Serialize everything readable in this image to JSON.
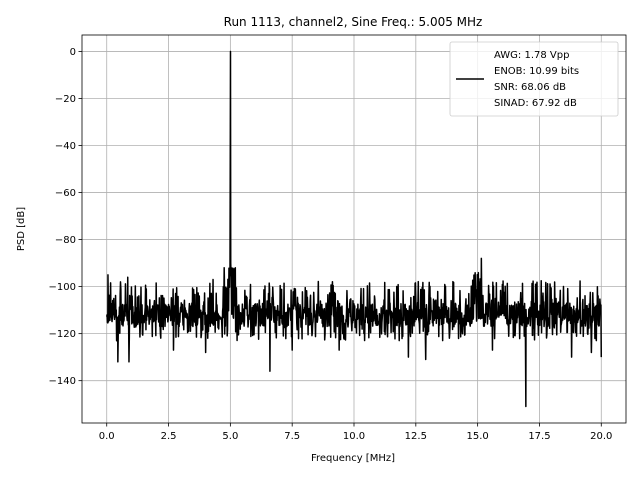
{
  "chart_data": {
    "type": "line",
    "title": "Run 1113, channel2, Sine Freq.: 5.005 MHz",
    "xlabel": "Frequency [MHz]",
    "ylabel": "PSD [dB]",
    "xlim": [
      -1,
      21
    ],
    "ylim": [
      -158,
      7
    ],
    "x_ticks": [
      0.0,
      2.5,
      5.0,
      7.5,
      10.0,
      12.5,
      15.0,
      17.5,
      20.0
    ],
    "x_tick_labels": [
      "0.0",
      "2.5",
      "5.0",
      "7.5",
      "10.0",
      "12.5",
      "15.0",
      "17.5",
      "20.0"
    ],
    "y_ticks": [
      0,
      -20,
      -40,
      -60,
      -80,
      -100,
      -120,
      -140
    ],
    "y_tick_labels": [
      "0",
      "−20",
      "−40",
      "−60",
      "−80",
      "−100",
      "−120",
      "−140"
    ],
    "grid": true,
    "legend_position": "top-right",
    "series": [
      {
        "name_lines": [
          "AWG: 1.78 Vpp",
          "ENOB: 10.99 bits",
          "SNR: 68.06 dB",
          "SINAD: 67.92 dB"
        ],
        "color": "#000000",
        "noise_floor_db": -112,
        "noise_band_db": [
          -122,
          -98
        ],
        "features": [
          {
            "x": 0.05,
            "y": -95
          },
          {
            "x": 0.4,
            "y": -123
          },
          {
            "x": 0.45,
            "y": -132
          },
          {
            "x": 0.9,
            "y": -132
          },
          {
            "x": 0.85,
            "y": -96
          },
          {
            "x": 2.7,
            "y": -127
          },
          {
            "x": 4.0,
            "y": -128
          },
          {
            "x": 4.3,
            "y": -97
          },
          {
            "x": 4.75,
            "y": -92
          },
          {
            "x": 4.9,
            "y": -88
          },
          {
            "x": 5.005,
            "y": 0
          },
          {
            "x": 5.1,
            "y": -87
          },
          {
            "x": 5.2,
            "y": -92
          },
          {
            "x": 6.6,
            "y": -136
          },
          {
            "x": 7.5,
            "y": -127
          },
          {
            "x": 9.4,
            "y": -127
          },
          {
            "x": 12.2,
            "y": -130
          },
          {
            "x": 12.9,
            "y": -131
          },
          {
            "x": 14.85,
            "y": -91
          },
          {
            "x": 15.0,
            "y": -87
          },
          {
            "x": 15.15,
            "y": -88
          },
          {
            "x": 15.6,
            "y": -127
          },
          {
            "x": 16.95,
            "y": -151
          },
          {
            "x": 18.8,
            "y": -130
          },
          {
            "x": 19.6,
            "y": -128
          },
          {
            "x": 20.0,
            "y": -130
          }
        ]
      }
    ]
  }
}
